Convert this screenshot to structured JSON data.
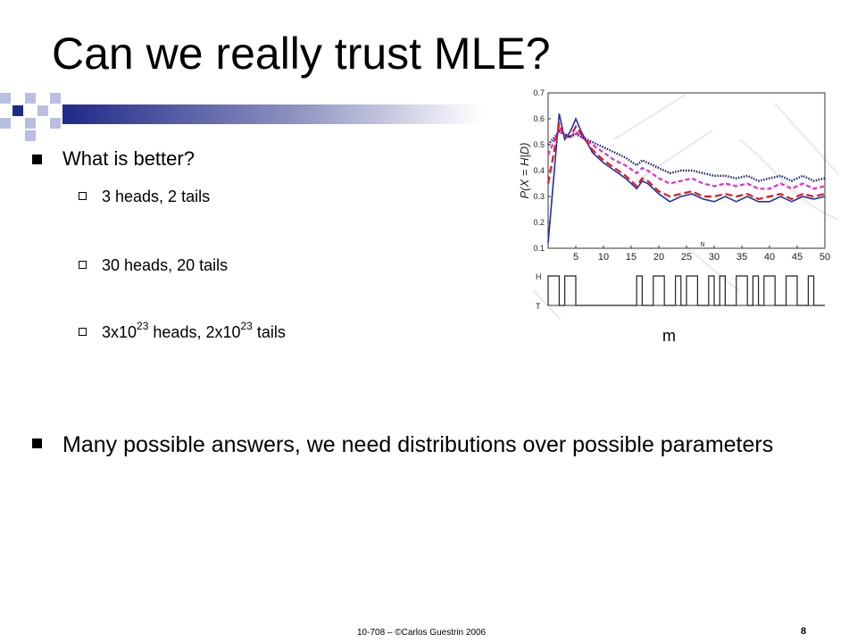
{
  "title": "Can we really trust MLE?",
  "bullets": {
    "q": "What is better?",
    "sub1": "3 heads, 2 tails",
    "sub2": "30 heads, 20 tails",
    "sub3_a": "3x10",
    "sub3_exp1": "23",
    "sub3_b": " heads, 2x10",
    "sub3_exp2": "23",
    "sub3_c": " tails",
    "answer": "Many possible answers, we need distributions over possible parameters"
  },
  "chart_label": "m",
  "chart_data": {
    "type": "line",
    "ylabel": "P(X = H|D)",
    "xlabel": "N",
    "x_ticks": [
      "5",
      "10",
      "15",
      "20",
      "25",
      "30",
      "35",
      "40",
      "45",
      "50"
    ],
    "y_ticks": [
      "0.1",
      "0.2",
      "0.3",
      "0.4",
      "0.5",
      "0.6",
      "0.7"
    ],
    "xlim": [
      0,
      50
    ],
    "ylim": [
      0.1,
      0.7
    ],
    "coin_axis_labels": [
      "H",
      "T"
    ],
    "coin_sequence": [
      1,
      1,
      0,
      1,
      1,
      0,
      0,
      0,
      0,
      0,
      0,
      0,
      0,
      0,
      0,
      0,
      1,
      0,
      0,
      1,
      1,
      0,
      0,
      1,
      0,
      1,
      1,
      0,
      0,
      1,
      0,
      1,
      0,
      0,
      1,
      1,
      0,
      1,
      0,
      1,
      1,
      0,
      0,
      1,
      1,
      0,
      0,
      1,
      0,
      0
    ],
    "series": [
      {
        "color": "#1c2fb4",
        "style": "solid",
        "x": [
          0,
          2,
          3,
          4,
          5,
          6,
          8,
          10,
          12,
          14,
          16,
          17,
          18,
          20,
          22,
          24,
          26,
          28,
          30,
          32,
          34,
          36,
          38,
          40,
          42,
          44,
          46,
          48,
          50
        ],
        "y": [
          0.12,
          0.62,
          0.52,
          0.55,
          0.6,
          0.55,
          0.47,
          0.43,
          0.4,
          0.37,
          0.33,
          0.36,
          0.35,
          0.31,
          0.28,
          0.3,
          0.31,
          0.29,
          0.28,
          0.3,
          0.28,
          0.3,
          0.28,
          0.28,
          0.3,
          0.28,
          0.3,
          0.29,
          0.3
        ]
      },
      {
        "color": "#e01a1a",
        "style": "dashed",
        "x": [
          0,
          2,
          3,
          4,
          5,
          6,
          8,
          10,
          12,
          14,
          16,
          17,
          18,
          20,
          22,
          24,
          26,
          28,
          30,
          32,
          34,
          36,
          38,
          40,
          42,
          44,
          46,
          48,
          50
        ],
        "y": [
          0.35,
          0.58,
          0.53,
          0.53,
          0.57,
          0.54,
          0.48,
          0.44,
          0.41,
          0.38,
          0.34,
          0.37,
          0.36,
          0.32,
          0.3,
          0.31,
          0.32,
          0.3,
          0.3,
          0.31,
          0.3,
          0.31,
          0.29,
          0.3,
          0.31,
          0.29,
          0.31,
          0.3,
          0.31
        ]
      },
      {
        "color": "#e22bd8",
        "style": "dashed",
        "x": [
          0,
          2,
          3,
          4,
          5,
          6,
          8,
          10,
          12,
          14,
          16,
          17,
          18,
          20,
          22,
          24,
          26,
          28,
          30,
          32,
          34,
          36,
          38,
          40,
          42,
          44,
          46,
          48,
          50
        ],
        "y": [
          0.46,
          0.56,
          0.54,
          0.53,
          0.55,
          0.53,
          0.5,
          0.47,
          0.44,
          0.42,
          0.39,
          0.41,
          0.4,
          0.37,
          0.35,
          0.36,
          0.37,
          0.35,
          0.34,
          0.35,
          0.34,
          0.35,
          0.33,
          0.33,
          0.35,
          0.33,
          0.35,
          0.33,
          0.34
        ]
      },
      {
        "color": "#1a2470",
        "style": "dotted",
        "x": [
          0,
          2,
          3,
          4,
          5,
          6,
          8,
          10,
          12,
          14,
          16,
          17,
          18,
          20,
          22,
          24,
          26,
          28,
          30,
          32,
          34,
          36,
          38,
          40,
          42,
          44,
          46,
          48,
          50
        ],
        "y": [
          0.5,
          0.55,
          0.54,
          0.53,
          0.54,
          0.53,
          0.51,
          0.49,
          0.47,
          0.45,
          0.42,
          0.44,
          0.43,
          0.41,
          0.39,
          0.4,
          0.4,
          0.39,
          0.38,
          0.38,
          0.37,
          0.38,
          0.36,
          0.37,
          0.38,
          0.36,
          0.38,
          0.36,
          0.37
        ]
      }
    ]
  },
  "footer": "10-708 – ©Carlos Guestrin 2006",
  "page_number": "8"
}
